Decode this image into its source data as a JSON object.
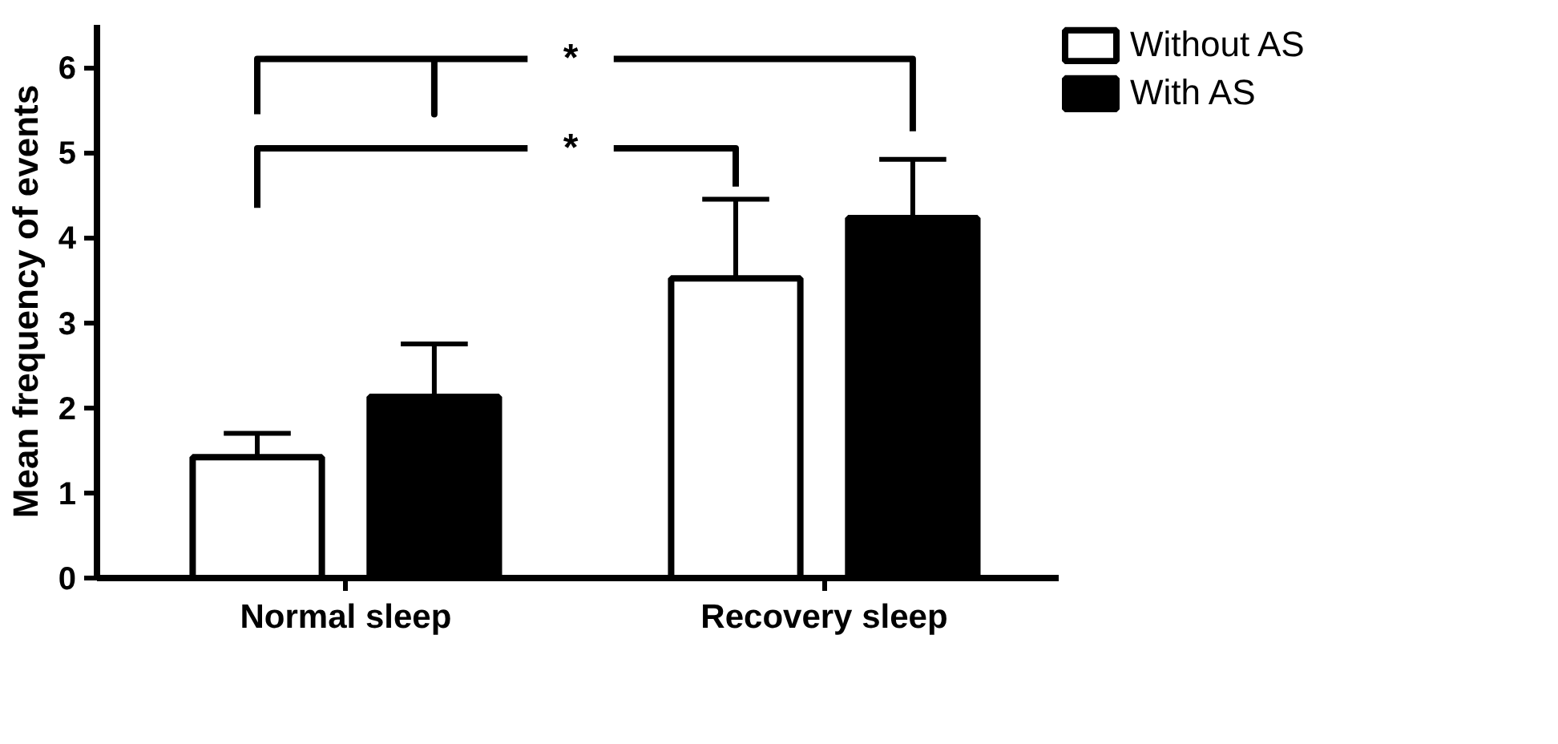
{
  "chart_data": {
    "type": "bar",
    "ylabel": "Mean frequency of events",
    "categories": [
      "Normal sleep",
      "Recovery sleep"
    ],
    "series": [
      {
        "name": "Without AS",
        "color": "#ffffff",
        "values": [
          1.42,
          3.52
        ],
        "errors": [
          [
            1.42,
            1.7
          ],
          [
            3.52,
            4.45
          ]
        ]
      },
      {
        "name": "With AS",
        "color": "#000000",
        "values": [
          2.13,
          4.23
        ],
        "errors": [
          [
            2.13,
            2.75
          ],
          [
            4.23,
            4.92
          ]
        ]
      }
    ],
    "ylim": [
      0,
      6.5
    ],
    "yticks": [
      0,
      1,
      2,
      3,
      4,
      5,
      6
    ],
    "grid": false,
    "legend": "top right",
    "annotations": [
      "*",
      "*"
    ]
  }
}
